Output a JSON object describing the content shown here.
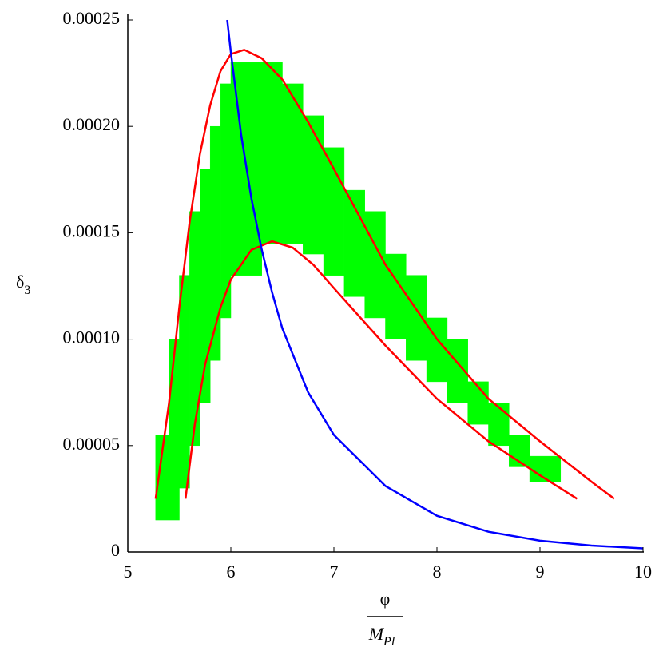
{
  "chart_data": {
    "type": "line",
    "xlim": [
      5,
      10
    ],
    "ylim": [
      0,
      0.00025
    ],
    "xticks": [
      5,
      6,
      7,
      8,
      9,
      10
    ],
    "yticks": [
      0,
      5e-05,
      {
        "value": 0.0001,
        "label": "0.00010"
      },
      0.00015,
      {
        "value": 0.0002,
        "label": "0.00020"
      },
      0.00025
    ],
    "xlabel": {
      "numerator": "φ",
      "denominator": "M",
      "denominator_sub": "Pl"
    },
    "ylabel": {
      "text": "δ",
      "sub": "3"
    },
    "region": {
      "color": "#00ff00",
      "x0": [
        5.27,
        5.4,
        5.5,
        5.6,
        5.7,
        5.8,
        5.9,
        6.0,
        6.3,
        6.5,
        6.7,
        6.9,
        7.1,
        7.3,
        7.5,
        7.7,
        7.9,
        8.1,
        8.3,
        8.5,
        8.7,
        8.9
      ],
      "x1": [
        5.4,
        5.5,
        5.6,
        5.7,
        5.8,
        5.9,
        6.0,
        6.3,
        6.5,
        6.7,
        6.9,
        7.1,
        7.3,
        7.5,
        7.7,
        7.9,
        8.1,
        8.3,
        8.5,
        8.7,
        8.9,
        9.2
      ],
      "low": [
        1.5e-05,
        1.5e-05,
        3e-05,
        5e-05,
        7e-05,
        9e-05,
        0.00011,
        0.00013,
        0.000145,
        0.000145,
        0.00014,
        0.00013,
        0.00012,
        0.00011,
        0.0001,
        9e-05,
        8e-05,
        7e-05,
        6e-05,
        5e-05,
        4e-05,
        3.3e-05
      ],
      "high": [
        5.5e-05,
        0.0001,
        0.00013,
        0.00016,
        0.00018,
        0.0002,
        0.00022,
        0.00023,
        0.00023,
        0.00022,
        0.000205,
        0.00019,
        0.00017,
        0.00016,
        0.00014,
        0.00013,
        0.00011,
        0.0001,
        8e-05,
        7e-05,
        5.5e-05,
        4.5e-05
      ]
    },
    "series": [
      {
        "color": "#ff0000",
        "x": [
          5.27,
          5.4,
          5.5,
          5.6,
          5.7,
          5.8,
          5.9,
          6.0,
          6.13,
          6.3,
          6.5,
          6.75,
          7.0,
          7.5,
          8.0,
          8.5,
          9.0,
          9.5,
          9.72
        ],
        "values": [
          2.5e-05,
          7e-05,
          0.000115,
          0.000155,
          0.000187,
          0.00021,
          0.000226,
          0.000234,
          0.000236,
          0.000232,
          0.000222,
          0.000202,
          0.00018,
          0.000135,
          0.0001,
          7.2e-05,
          5.2e-05,
          3.3e-05,
          2.5e-05
        ]
      },
      {
        "color": "#ff0000",
        "x": [
          5.56,
          5.65,
          5.75,
          5.9,
          6.0,
          6.2,
          6.4,
          6.6,
          6.8,
          7.0,
          7.5,
          8.0,
          8.5,
          9.0,
          9.36
        ],
        "values": [
          2.5e-05,
          6e-05,
          8.8e-05,
          0.000115,
          0.000128,
          0.000142,
          0.000146,
          0.000143,
          0.000135,
          0.000124,
          9.7e-05,
          7.2e-05,
          5.2e-05,
          3.6e-05,
          2.5e-05
        ]
      },
      {
        "color": "#0000ff",
        "x": [
          5.965,
          6.0,
          6.1,
          6.2,
          6.3,
          6.4,
          6.5,
          6.75,
          7.0,
          7.5,
          8.0,
          8.5,
          9.0,
          9.5,
          10
        ],
        "values": [
          0.00025,
          0.000235,
          0.000196,
          0.000166,
          0.000142,
          0.000122,
          0.000105,
          7.5e-05,
          5.5e-05,
          3.1e-05,
          1.7e-05,
          9.5e-06,
          5.3e-06,
          3e-06,
          1.7e-06
        ]
      }
    ]
  }
}
